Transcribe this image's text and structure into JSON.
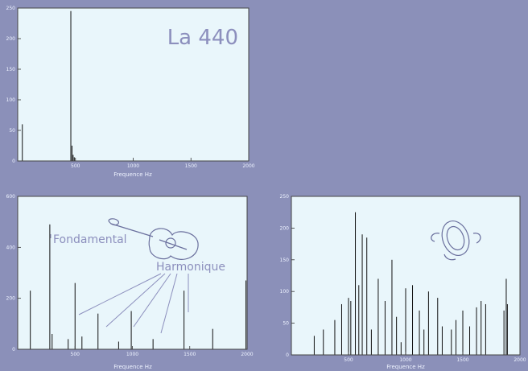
{
  "charts": [
    {
      "type": "bar",
      "title": "La 440",
      "xlabel": "Frequence Hz",
      "xlim": [
        0,
        2000
      ],
      "ylim": [
        0,
        250
      ],
      "xticks": [
        500,
        1000,
        1500,
        2000
      ],
      "yticks": [
        0,
        50,
        100,
        150,
        200,
        250
      ],
      "xtick_labels": [
        "500",
        "1000",
        "1500",
        "2000"
      ],
      "ytick_labels": [
        "0",
        "50",
        "100",
        "150",
        "200",
        "250"
      ],
      "points": [
        [
          40,
          60
        ],
        [
          460,
          245
        ],
        [
          470,
          25
        ],
        [
          480,
          10
        ],
        [
          490,
          6
        ]
      ]
    },
    {
      "type": "bar",
      "xlabel": "Frequence Hz",
      "xlim": [
        0,
        2000
      ],
      "ylim": [
        0,
        600
      ],
      "xticks": [
        500,
        1000,
        1500,
        2000
      ],
      "yticks": [
        0,
        200,
        400,
        600
      ],
      "xtick_labels": [
        "500",
        "1000",
        "1500",
        "2000"
      ],
      "ytick_labels": [
        "0",
        "200",
        "400",
        "600"
      ],
      "points": [
        [
          110,
          230
        ],
        [
          280,
          490
        ],
        [
          300,
          60
        ],
        [
          440,
          40
        ],
        [
          500,
          260
        ],
        [
          560,
          50
        ],
        [
          700,
          140
        ],
        [
          880,
          30
        ],
        [
          990,
          150
        ],
        [
          1180,
          40
        ],
        [
          1450,
          230
        ],
        [
          1700,
          80
        ],
        [
          1990,
          270
        ]
      ]
    },
    {
      "type": "bar",
      "xlabel": "Frequence Hz",
      "xlim": [
        0,
        2000
      ],
      "ylim": [
        0,
        250
      ],
      "xticks": [
        500,
        1000,
        1500,
        2000
      ],
      "yticks": [
        0,
        50,
        100,
        150,
        200,
        250
      ],
      "xtick_labels": [
        "500",
        "1000",
        "1500",
        "2000"
      ],
      "ytick_labels": [
        "0",
        "50",
        "100",
        "150",
        "200",
        "250"
      ],
      "points": [
        [
          200,
          30
        ],
        [
          280,
          40
        ],
        [
          380,
          55
        ],
        [
          440,
          80
        ],
        [
          500,
          90
        ],
        [
          520,
          85
        ],
        [
          560,
          225
        ],
        [
          590,
          110
        ],
        [
          620,
          190
        ],
        [
          660,
          185
        ],
        [
          700,
          40
        ],
        [
          760,
          120
        ],
        [
          820,
          85
        ],
        [
          880,
          150
        ],
        [
          920,
          60
        ],
        [
          960,
          20
        ],
        [
          1000,
          105
        ],
        [
          1060,
          110
        ],
        [
          1120,
          70
        ],
        [
          1160,
          40
        ],
        [
          1200,
          100
        ],
        [
          1280,
          90
        ],
        [
          1320,
          45
        ],
        [
          1400,
          40
        ],
        [
          1440,
          55
        ],
        [
          1500,
          70
        ],
        [
          1560,
          45
        ],
        [
          1620,
          75
        ],
        [
          1660,
          85
        ],
        [
          1700,
          80
        ],
        [
          1860,
          70
        ],
        [
          1880,
          120
        ],
        [
          1890,
          80
        ]
      ]
    }
  ],
  "chart_data": [
    {
      "type": "bar",
      "title": "La 440",
      "xlabel": "Frequence Hz",
      "xlim": [
        0,
        2000
      ],
      "ylim": [
        0,
        250
      ],
      "x": [
        40,
        460,
        470,
        480,
        490
      ],
      "values": [
        60,
        245,
        25,
        10,
        6
      ],
      "tick_labels_x": [
        "500",
        "1000",
        "1500",
        "2000"
      ],
      "tick_labels_y": [
        "0",
        "50",
        "100",
        "150",
        "200",
        "250"
      ]
    },
    {
      "type": "bar",
      "xlabel": "Frequence Hz",
      "xlim": [
        0,
        2000
      ],
      "ylim": [
        0,
        600
      ],
      "x": [
        110,
        280,
        300,
        440,
        500,
        560,
        700,
        880,
        990,
        1180,
        1450,
        1700,
        1990
      ],
      "values": [
        230,
        490,
        60,
        40,
        260,
        50,
        140,
        30,
        150,
        40,
        230,
        80,
        270
      ],
      "annotations": [
        "Fondamental",
        "Harmonique"
      ],
      "tick_labels_x": [
        "500",
        "1000",
        "1500",
        "2000"
      ],
      "tick_labels_y": [
        "0",
        "200",
        "400",
        "600"
      ]
    },
    {
      "type": "bar",
      "xlabel": "Frequence Hz",
      "xlim": [
        0,
        2000
      ],
      "ylim": [
        0,
        250
      ],
      "x": [
        200,
        280,
        380,
        440,
        500,
        520,
        560,
        590,
        620,
        660,
        700,
        760,
        820,
        880,
        920,
        960,
        1000,
        1060,
        1120,
        1160,
        1200,
        1280,
        1320,
        1400,
        1440,
        1500,
        1560,
        1620,
        1660,
        1700,
        1860,
        1880,
        1890
      ],
      "values": [
        30,
        40,
        55,
        80,
        90,
        85,
        225,
        110,
        190,
        185,
        40,
        120,
        85,
        150,
        60,
        20,
        105,
        110,
        70,
        40,
        100,
        90,
        45,
        40,
        55,
        70,
        45,
        75,
        85,
        80,
        70,
        120,
        80
      ],
      "tick_labels_x": [
        "500",
        "1000",
        "1500",
        "2000"
      ],
      "tick_labels_y": [
        "0",
        "50",
        "100",
        "150",
        "200",
        "250"
      ]
    }
  ],
  "annotations": {
    "fondamental": "Fondamental",
    "harmonique": "Harmonique"
  },
  "icons": {
    "guitar": "guitar-icon",
    "cymbal": "cymbal-icon"
  }
}
